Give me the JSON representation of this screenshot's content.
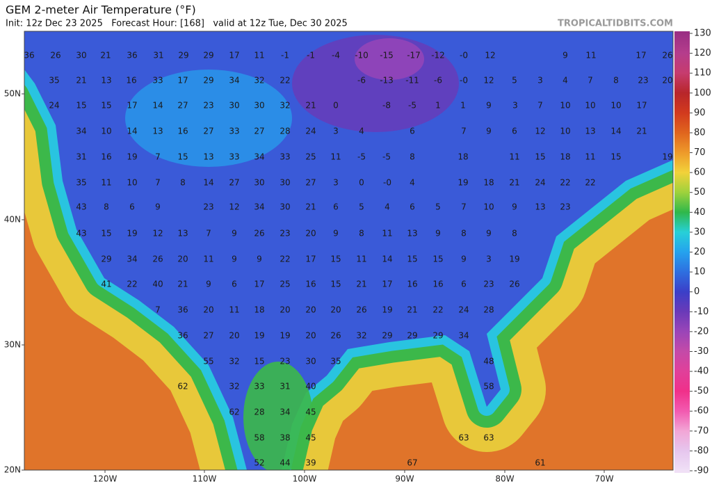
{
  "title": "GEM 2-meter Air Temperature (°F)",
  "subtitle": "Init: 12z Dec 23 2025   Forecast Hour: [168]   valid at 12z Tue, Dec 30 2025",
  "credit": "TROPICALTIDBITS.COM",
  "latitude_labels": [
    "50N",
    "40N",
    "30N",
    "20N"
  ],
  "longitude_labels": [
    "120W",
    "110W",
    "100W",
    "90W",
    "80W",
    "70W"
  ],
  "colorbar_ticks": [
    130,
    120,
    110,
    100,
    90,
    80,
    70,
    60,
    50,
    40,
    30,
    20,
    10,
    0,
    -10,
    -20,
    -30,
    -40,
    -50,
    -60,
    -70,
    -80,
    -90
  ],
  "colorbar_colors": [
    "#9b2f84",
    "#b53d8c",
    "#c63c6e",
    "#b8262a",
    "#d23a1e",
    "#e0651e",
    "#ee9a2a",
    "#f2d23a",
    "#9ed23c",
    "#2fb84a",
    "#27d0d8",
    "#25a2ee",
    "#2e6fe0",
    "#3b3fc8",
    "#6a3ab8",
    "#9a45b8",
    "#c44aa8",
    "#e0409a",
    "#f0308a",
    "#f25ab0",
    "#f2a6d6",
    "#e6c6ee",
    "#f0e0f6"
  ],
  "temperatures": [
    [
      36,
      26,
      30,
      21,
      36,
      31,
      29,
      29,
      17,
      11,
      -1,
      -1,
      -4,
      -10,
      -15,
      -17,
      -12,
      {
        "value": 0,
        "label": "-0"
      },
      12,
      9,
      11,
      17,
      26
    ],
    [
      35,
      21,
      13,
      16,
      33,
      17,
      29,
      34,
      32,
      22,
      -6,
      -13,
      -11,
      -6,
      {
        "value": 0,
        "label": "-0"
      },
      12,
      5,
      3,
      4,
      7,
      8,
      23,
      20
    ],
    [
      24,
      15,
      15,
      17,
      14,
      27,
      23,
      30,
      30,
      32,
      21,
      0,
      -8,
      -5,
      1,
      1,
      9,
      3,
      7,
      10,
      10,
      10,
      17
    ],
    [
      34,
      10,
      14,
      13,
      16,
      27,
      33,
      27,
      28,
      24,
      3,
      4,
      6,
      7,
      9,
      6,
      12,
      10,
      13,
      14,
      21
    ],
    [
      31,
      16,
      19,
      7,
      15,
      13,
      33,
      34,
      33,
      25,
      11,
      -5,
      -5,
      8,
      18,
      11,
      15,
      18,
      11,
      15,
      19
    ],
    [
      35,
      11,
      10,
      7,
      8,
      14,
      27,
      30,
      30,
      27,
      3,
      0,
      {
        "value": 0,
        "label": "-0"
      },
      4,
      19,
      18,
      21,
      24,
      22,
      22
    ],
    [
      43,
      8,
      6,
      9,
      23,
      12,
      34,
      30,
      21,
      6,
      5,
      4,
      6,
      5,
      7,
      10,
      9,
      13,
      23
    ],
    [
      43,
      15,
      19,
      12,
      13,
      7,
      9,
      26,
      23,
      20,
      9,
      8,
      11,
      13,
      9,
      8,
      9,
      8
    ],
    [
      29,
      34,
      26,
      20,
      11,
      9,
      9,
      22,
      17,
      15,
      11,
      14,
      15,
      15,
      9,
      3,
      19
    ],
    [
      41,
      22,
      40,
      21,
      9,
      6,
      17,
      25,
      16,
      15,
      21,
      17,
      16,
      16,
      6,
      23,
      26
    ],
    [
      7,
      36,
      20,
      11,
      18,
      20,
      20,
      20,
      26,
      19,
      21,
      22,
      24,
      28
    ],
    [
      36,
      27,
      20,
      19,
      19,
      20,
      26,
      32,
      29,
      29,
      29,
      34
    ],
    [
      55,
      32,
      15,
      23,
      30,
      35,
      48
    ],
    [
      62,
      32,
      33,
      31,
      40,
      58
    ],
    [
      62,
      28,
      34,
      45
    ],
    [
      58,
      38,
      45,
      63,
      63
    ],
    [
      52,
      44,
      39,
      67,
      61
    ]
  ]
}
